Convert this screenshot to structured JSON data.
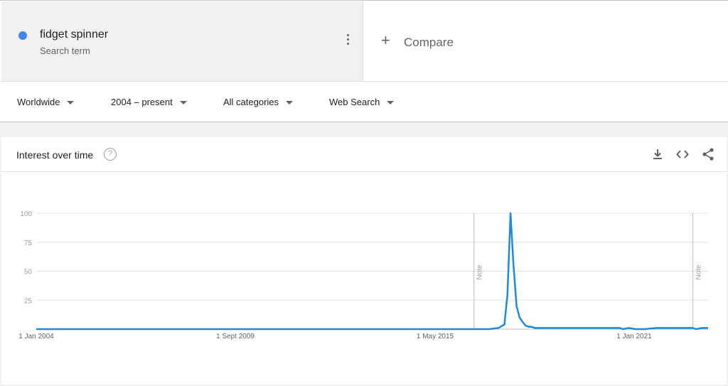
{
  "search_term": {
    "name": "fidget spinner",
    "type": "Search term",
    "color": "#4285f4"
  },
  "compare": {
    "label": "Compare"
  },
  "filters": [
    {
      "label": "Worldwide"
    },
    {
      "label": "2004 – present"
    },
    {
      "label": "All categories"
    },
    {
      "label": "Web Search"
    }
  ],
  "card": {
    "title": "Interest over time"
  },
  "icons": [
    "download-icon",
    "embed-icon",
    "share-icon",
    "help-icon",
    "more-vert-icon",
    "plus-icon"
  ],
  "chart_data": {
    "type": "line",
    "ylim": [
      0,
      100
    ],
    "yticks": [
      25,
      50,
      75,
      100
    ],
    "xticks": [
      "1 Jan 2004",
      "1 Sept 2009",
      "1 May 2015",
      "1 Jan 2021"
    ],
    "xrange": [
      "2004-01",
      "2022-06"
    ],
    "annotations": [
      {
        "label": "Note",
        "x": "2016-01"
      },
      {
        "label": "Note",
        "x": "2022-01"
      }
    ],
    "series": [
      {
        "color": "#1a8ae6",
        "x": [
          "2004-01",
          "2016-01",
          "2016-06",
          "2016-09",
          "2016-11",
          "2016-12",
          "2017-01",
          "2017-02",
          "2017-03",
          "2017-04",
          "2017-05",
          "2017-06",
          "2017-07",
          "2017-08",
          "2017-09",
          "2017-10",
          "2017-11",
          "2017-12",
          "2018-01",
          "2018-06",
          "2019-01",
          "2019-06",
          "2020-01",
          "2020-02",
          "2020-04",
          "2020-06",
          "2020-09",
          "2021-01",
          "2021-06",
          "2022-01",
          "2022-02",
          "2022-04",
          "2022-06"
        ],
        "y": [
          0,
          0,
          0,
          1,
          4,
          30,
          100,
          55,
          20,
          10,
          6,
          3,
          2,
          2,
          1,
          1,
          1,
          1,
          1,
          1,
          1,
          1,
          1,
          0,
          1,
          0,
          0,
          1,
          1,
          1,
          0,
          1,
          1
        ]
      }
    ]
  }
}
